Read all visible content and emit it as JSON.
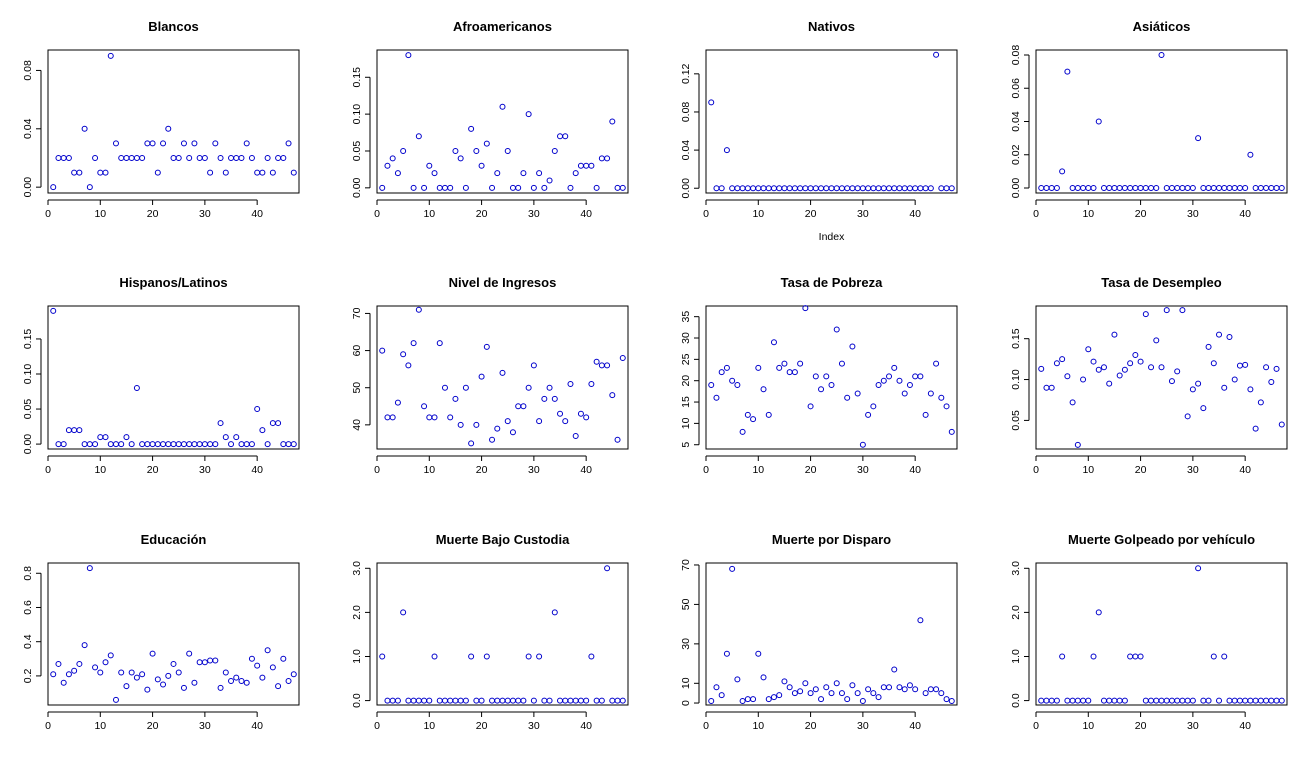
{
  "style": {
    "point_color": "#0000cc",
    "axis_color": "#000000",
    "background": "#ffffff"
  },
  "chart_data": [
    {
      "type": "scatter",
      "title": "Blancos",
      "xlabel": "",
      "xlim": [
        0,
        48
      ],
      "ylim": [
        -0.004,
        0.094
      ],
      "x_ticks": [
        0,
        10,
        20,
        30,
        40
      ],
      "y_ticks": [
        0.0,
        0.04,
        0.08
      ],
      "y_tick_labels": [
        "0.00",
        "0.04",
        "0.08"
      ],
      "values": [
        0.0,
        0.02,
        0.02,
        0.02,
        0.01,
        0.01,
        0.04,
        0.0,
        0.02,
        0.01,
        0.01,
        0.09,
        0.03,
        0.02,
        0.02,
        0.02,
        0.02,
        0.02,
        0.03,
        0.03,
        0.01,
        0.03,
        0.04,
        0.02,
        0.02,
        0.03,
        0.02,
        0.03,
        0.02,
        0.02,
        0.01,
        0.03,
        0.02,
        0.01,
        0.02,
        0.02,
        0.02,
        0.03,
        0.02,
        0.01,
        0.01,
        0.02,
        0.01,
        0.02,
        0.02,
        0.03,
        0.01
      ]
    },
    {
      "type": "scatter",
      "title": "Afroamericanos",
      "xlabel": "",
      "xlim": [
        0,
        48
      ],
      "ylim": [
        -0.007,
        0.187
      ],
      "x_ticks": [
        0,
        10,
        20,
        30,
        40
      ],
      "y_ticks": [
        0.0,
        0.05,
        0.1,
        0.15
      ],
      "y_tick_labels": [
        "0.00",
        "0.05",
        "0.10",
        "0.15"
      ],
      "values": [
        0.0,
        0.03,
        0.04,
        0.02,
        0.05,
        0.18,
        0.0,
        0.07,
        0.0,
        0.03,
        0.02,
        0.0,
        0.0,
        0.0,
        0.05,
        0.04,
        0.0,
        0.08,
        0.05,
        0.03,
        0.06,
        0.0,
        0.02,
        0.11,
        0.05,
        0.0,
        0.0,
        0.02,
        0.1,
        0.0,
        0.02,
        0.0,
        0.01,
        0.05,
        0.07,
        0.07,
        0.0,
        0.02,
        0.03,
        0.03,
        0.03,
        0.0,
        0.04,
        0.04,
        0.09,
        0.0,
        0.0
      ]
    },
    {
      "type": "scatter",
      "title": "Nativos",
      "xlabel": "Index",
      "xlim": [
        0,
        48
      ],
      "ylim": [
        -0.005,
        0.145
      ],
      "x_ticks": [
        0,
        10,
        20,
        30,
        40
      ],
      "y_ticks": [
        0.0,
        0.04,
        0.08,
        0.12
      ],
      "y_tick_labels": [
        "0.00",
        "0.04",
        "0.08",
        "0.12"
      ],
      "values": [
        0.09,
        0.0,
        0.0,
        0.04,
        0.0,
        0.0,
        0.0,
        0.0,
        0.0,
        0.0,
        0.0,
        0.0,
        0.0,
        0.0,
        0.0,
        0.0,
        0.0,
        0.0,
        0.0,
        0.0,
        0.0,
        0.0,
        0.0,
        0.0,
        0.0,
        0.0,
        0.0,
        0.0,
        0.0,
        0.0,
        0.0,
        0.0,
        0.0,
        0.0,
        0.0,
        0.0,
        0.0,
        0.0,
        0.0,
        0.0,
        0.0,
        0.0,
        0.0,
        0.14,
        0.0,
        0.0,
        0.0
      ]
    },
    {
      "type": "scatter",
      "title": "Asiáticos",
      "xlabel": "",
      "xlim": [
        0,
        48
      ],
      "ylim": [
        -0.003,
        0.083
      ],
      "x_ticks": [
        0,
        10,
        20,
        30,
        40
      ],
      "y_ticks": [
        0.0,
        0.02,
        0.04,
        0.06,
        0.08
      ],
      "y_tick_labels": [
        "0.00",
        "0.02",
        "0.04",
        "0.06",
        "0.08"
      ],
      "values": [
        0.0,
        0.0,
        0.0,
        0.0,
        0.01,
        0.07,
        0.0,
        0.0,
        0.0,
        0.0,
        0.0,
        0.04,
        0.0,
        0.0,
        0.0,
        0.0,
        0.0,
        0.0,
        0.0,
        0.0,
        0.0,
        0.0,
        0.0,
        0.08,
        0.0,
        0.0,
        0.0,
        0.0,
        0.0,
        0.0,
        0.03,
        0.0,
        0.0,
        0.0,
        0.0,
        0.0,
        0.0,
        0.0,
        0.0,
        0.0,
        0.02,
        0.0,
        0.0,
        0.0,
        0.0,
        0.0,
        0.0
      ]
    },
    {
      "type": "scatter",
      "title": "Hispanos/Latinos",
      "xlabel": "",
      "xlim": [
        0,
        48
      ],
      "ylim": [
        -0.007,
        0.197
      ],
      "x_ticks": [
        0,
        10,
        20,
        30,
        40
      ],
      "y_ticks": [
        0.0,
        0.05,
        0.1,
        0.15
      ],
      "y_tick_labels": [
        "0.00",
        "0.05",
        "0.10",
        "0.15"
      ],
      "values": [
        0.19,
        0.0,
        0.0,
        0.02,
        0.02,
        0.02,
        0.0,
        0.0,
        0.0,
        0.01,
        0.01,
        0.0,
        0.0,
        0.0,
        0.01,
        0.0,
        0.08,
        0.0,
        0.0,
        0.0,
        0.0,
        0.0,
        0.0,
        0.0,
        0.0,
        0.0,
        0.0,
        0.0,
        0.0,
        0.0,
        0.0,
        0.0,
        0.03,
        0.01,
        0.0,
        0.01,
        0.0,
        0.0,
        0.0,
        0.05,
        0.02,
        0.0,
        0.03,
        0.03,
        0.0,
        0.0,
        0.0
      ]
    },
    {
      "type": "scatter",
      "title": "Nivel de Ingresos",
      "xlabel": "",
      "xlim": [
        0,
        48
      ],
      "ylim": [
        33.5,
        72
      ],
      "x_ticks": [
        0,
        10,
        20,
        30,
        40
      ],
      "y_ticks": [
        40,
        50,
        60,
        70
      ],
      "y_tick_labels": [
        "40",
        "50",
        "60",
        "70"
      ],
      "values": [
        60,
        42,
        42,
        46,
        59,
        56,
        62,
        71,
        45,
        42,
        42,
        62,
        50,
        42,
        47,
        40,
        50,
        35,
        40,
        53,
        61,
        36,
        39,
        54,
        41,
        38,
        45,
        45,
        50,
        56,
        41,
        47,
        50,
        47,
        43,
        41,
        51,
        37,
        43,
        42,
        51,
        57,
        56,
        56,
        48,
        36,
        58
      ]
    },
    {
      "type": "scatter",
      "title": "Tasa de Pobreza",
      "xlabel": "",
      "xlim": [
        0,
        48
      ],
      "ylim": [
        4,
        37.5
      ],
      "x_ticks": [
        0,
        10,
        20,
        30,
        40
      ],
      "y_ticks": [
        5,
        10,
        15,
        20,
        25,
        30,
        35
      ],
      "y_tick_labels": [
        "5",
        "10",
        "15",
        "20",
        "25",
        "30",
        "35"
      ],
      "values": [
        19,
        16,
        22,
        23,
        20,
        19,
        8,
        12,
        11,
        23,
        18,
        12,
        29,
        23,
        24,
        22,
        22,
        24,
        37,
        14,
        21,
        18,
        21,
        19,
        32,
        24,
        16,
        28,
        17,
        5,
        12,
        14,
        19,
        20,
        21,
        23,
        20,
        17,
        19,
        21,
        21,
        12,
        17,
        24,
        16,
        14,
        8
      ]
    },
    {
      "type": "scatter",
      "title": "Tasa de Desempleo",
      "xlabel": "",
      "xlim": [
        0,
        48
      ],
      "ylim": [
        0.015,
        0.19
      ],
      "x_ticks": [
        0,
        10,
        20,
        30,
        40
      ],
      "y_ticks": [
        0.05,
        0.1,
        0.15
      ],
      "y_tick_labels": [
        "0.05",
        "0.10",
        "0.15"
      ],
      "values": [
        0.113,
        0.09,
        0.09,
        0.12,
        0.125,
        0.104,
        0.072,
        0.02,
        0.1,
        0.137,
        0.122,
        0.112,
        0.115,
        0.095,
        0.155,
        0.105,
        0.112,
        0.12,
        0.13,
        0.122,
        0.18,
        0.115,
        0.148,
        0.115,
        0.185,
        0.098,
        0.11,
        0.185,
        0.055,
        0.088,
        0.095,
        0.065,
        0.14,
        0.12,
        0.155,
        0.09,
        0.152,
        0.1,
        0.117,
        0.118,
        0.088,
        0.04,
        0.072,
        0.115,
        0.097,
        0.113,
        0.045
      ]
    },
    {
      "type": "scatter",
      "title": "Educación",
      "xlabel": "",
      "xlim": [
        0,
        48
      ],
      "ylim": [
        0.03,
        0.86
      ],
      "x_ticks": [
        0,
        10,
        20,
        30,
        40
      ],
      "y_ticks": [
        0.2,
        0.4,
        0.6,
        0.8
      ],
      "y_tick_labels": [
        "0.2",
        "0.4",
        "0.6",
        "0.8"
      ],
      "values": [
        0.21,
        0.27,
        0.16,
        0.21,
        0.23,
        0.27,
        0.38,
        0.83,
        0.25,
        0.22,
        0.28,
        0.32,
        0.06,
        0.22,
        0.14,
        0.22,
        0.19,
        0.21,
        0.12,
        0.33,
        0.18,
        0.15,
        0.2,
        0.27,
        0.22,
        0.13,
        0.33,
        0.16,
        0.28,
        0.28,
        0.29,
        0.29,
        0.13,
        0.22,
        0.17,
        0.19,
        0.17,
        0.16,
        0.3,
        0.26,
        0.19,
        0.35,
        0.25,
        0.14,
        0.3,
        0.17,
        0.21
      ]
    },
    {
      "type": "scatter",
      "title": "Muerte Bajo Custodia",
      "xlabel": "",
      "xlim": [
        0,
        48
      ],
      "ylim": [
        -0.1,
        3.12
      ],
      "x_ticks": [
        0,
        10,
        20,
        30,
        40
      ],
      "y_ticks": [
        0.0,
        1.0,
        2.0,
        3.0
      ],
      "y_tick_labels": [
        "0.0",
        "1.0",
        "2.0",
        "3.0"
      ],
      "values": [
        1,
        0,
        0,
        0,
        2,
        0,
        0,
        0,
        0,
        0,
        1,
        0,
        0,
        0,
        0,
        0,
        0,
        1,
        0,
        0,
        1,
        0,
        0,
        0,
        0,
        0,
        0,
        0,
        1,
        0,
        1,
        0,
        0,
        2,
        0,
        0,
        0,
        0,
        0,
        0,
        1,
        0,
        0,
        3,
        0,
        0,
        0
      ]
    },
    {
      "type": "scatter",
      "title": "Muerte por Disparo",
      "xlabel": "",
      "xlim": [
        0,
        48
      ],
      "ylim": [
        -1,
        71
      ],
      "x_ticks": [
        0,
        10,
        20,
        30,
        40
      ],
      "y_ticks": [
        0,
        10,
        30,
        50,
        70
      ],
      "y_tick_labels": [
        "0",
        "10",
        "30",
        "50",
        "70"
      ],
      "values": [
        1,
        8,
        4,
        25,
        68,
        12,
        1,
        2,
        2,
        25,
        13,
        2,
        3,
        4,
        11,
        8,
        5,
        6,
        10,
        5,
        7,
        2,
        8,
        5,
        10,
        5,
        2,
        9,
        5,
        1,
        7,
        5,
        3,
        8,
        8,
        17,
        8,
        7,
        9,
        7,
        42,
        5,
        7,
        7,
        5,
        2,
        1
      ]
    },
    {
      "type": "scatter",
      "title": "Muerte Golpeado por vehículo",
      "xlabel": "",
      "xlim": [
        0,
        48
      ],
      "ylim": [
        -0.1,
        3.12
      ],
      "x_ticks": [
        0,
        10,
        20,
        30,
        40
      ],
      "y_ticks": [
        0.0,
        1.0,
        2.0,
        3.0
      ],
      "y_tick_labels": [
        "0.0",
        "1.0",
        "2.0",
        "3.0"
      ],
      "values": [
        0,
        0,
        0,
        0,
        1,
        0,
        0,
        0,
        0,
        0,
        1,
        2,
        0,
        0,
        0,
        0,
        0,
        1,
        1,
        1,
        0,
        0,
        0,
        0,
        0,
        0,
        0,
        0,
        0,
        0,
        3,
        0,
        0,
        1,
        0,
        1,
        0,
        0,
        0,
        0,
        0,
        0,
        0,
        0,
        0,
        0,
        0
      ]
    }
  ]
}
